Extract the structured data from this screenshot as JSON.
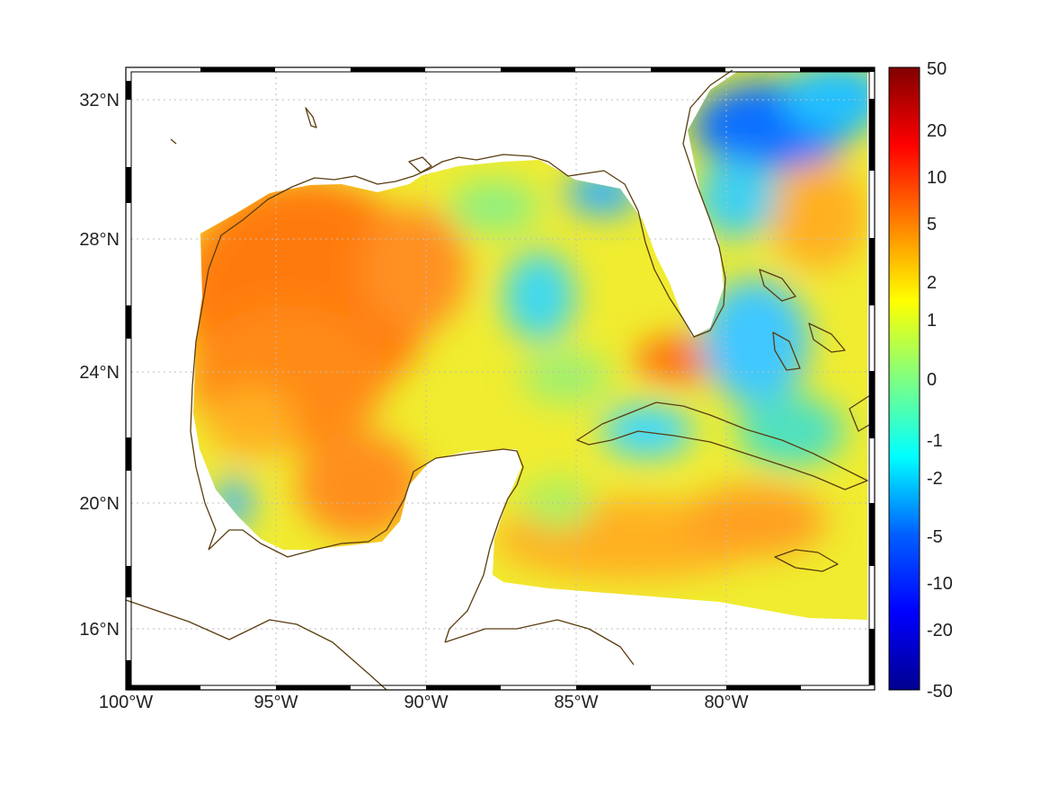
{
  "map": {
    "x_ticks": [
      "100°W",
      "95°W",
      "90°W",
      "85°W",
      "80°W"
    ],
    "y_ticks": [
      "32°N",
      "28°N",
      "24°N",
      "20°N",
      "16°N"
    ]
  },
  "colorbar": {
    "ticks": [
      "50",
      "20",
      "10",
      "5",
      "2",
      "1",
      "0",
      "-1",
      "-2",
      "-5",
      "-10",
      "-20",
      "-50"
    ],
    "range": [
      -50,
      50
    ]
  }
}
